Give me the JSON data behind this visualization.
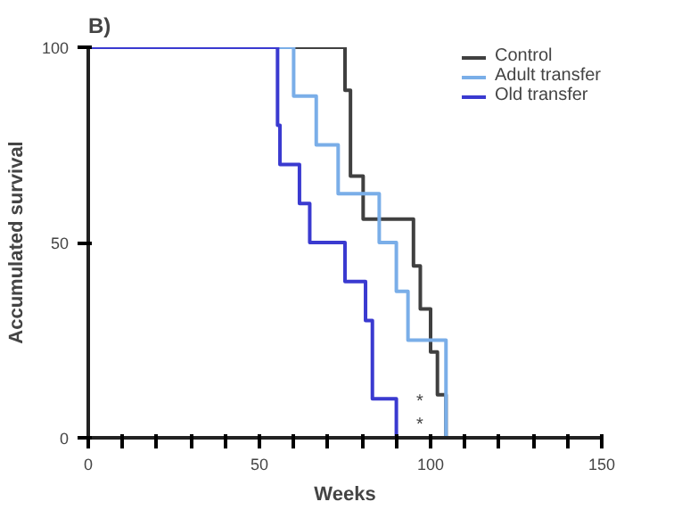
{
  "chart_data": {
    "type": "step",
    "title": "B)",
    "xlabel": "Weeks",
    "ylabel": "Accumulated survival",
    "series": [
      {
        "name": "Control",
        "color": "#404040",
        "x": [
          0,
          75,
          76.6,
          80.3,
          95,
          97,
          100,
          102,
          104.5
        ],
        "values": [
          100,
          89,
          67,
          56,
          44,
          33,
          22,
          11,
          0
        ]
      },
      {
        "name": "Adult transfer",
        "color": "#7aaee8",
        "x": [
          0,
          60,
          66.6,
          73,
          85,
          90,
          93.4,
          104.5
        ],
        "values": [
          100,
          87.5,
          75,
          62.5,
          50,
          37.5,
          25,
          0
        ]
      },
      {
        "name": "Old transfer",
        "color": "#3a3ad0",
        "x": [
          0,
          55.3,
          56,
          61.7,
          64.7,
          75,
          81,
          83,
          90
        ],
        "values": [
          100,
          80,
          70,
          60,
          50,
          40,
          30,
          10,
          0
        ]
      }
    ],
    "annotations": [
      "*",
      "*"
    ],
    "xlim": [
      0,
      150
    ],
    "ylim": [
      0,
      100
    ],
    "xticks": [
      0,
      {
        "value": 10,
        "label": null
      },
      {
        "value": 20,
        "label": null
      },
      {
        "value": 30,
        "label": null
      },
      {
        "value": 40,
        "label": null
      },
      50,
      {
        "value": 60,
        "label": null
      },
      {
        "value": 70,
        "label": null
      },
      {
        "value": 80,
        "label": null
      },
      {
        "value": 90,
        "label": null
      },
      100,
      {
        "value": 110,
        "label": null
      },
      {
        "value": 120,
        "label": null
      },
      {
        "value": 130,
        "label": null
      },
      {
        "value": 140,
        "label": null
      },
      150
    ],
    "yticks": [
      0,
      50,
      100
    ],
    "grid": false,
    "legend": "top right",
    "marker": "none",
    "line_style": "solid"
  }
}
